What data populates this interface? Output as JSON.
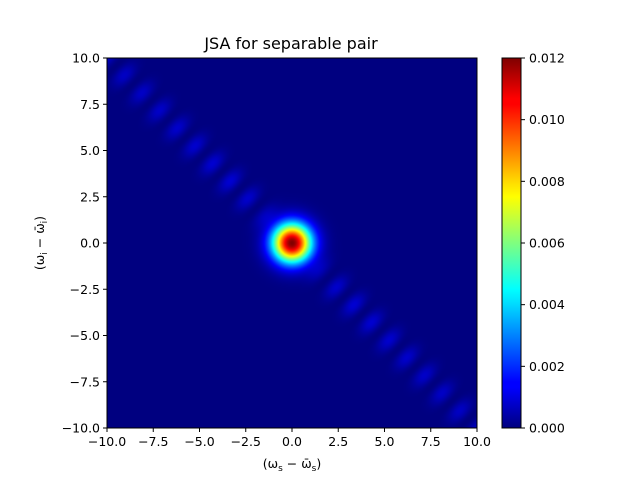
{
  "chart_data": {
    "type": "heatmap",
    "title": "JSA for separable pair",
    "xlabel": "(ω_s − ω̄_s)",
    "ylabel": "(ω_i − ω̄_i)",
    "xlim": [
      -10.0,
      10.0
    ],
    "ylim": [
      -10.0,
      10.0
    ],
    "x_ticks": [
      "−10.0",
      "−7.5",
      "−5.0",
      "−2.5",
      "0.0",
      "2.5",
      "5.0",
      "7.5",
      "10.0"
    ],
    "y_ticks": [
      "10.0",
      "7.5",
      "5.0",
      "2.5",
      "0.0",
      "−2.5",
      "−5.0",
      "−7.5",
      "−10.0"
    ],
    "x_tick_values": [
      -10,
      -7.5,
      -5,
      -2.5,
      0,
      2.5,
      5,
      7.5,
      10
    ],
    "y_tick_values": [
      10,
      7.5,
      5,
      2.5,
      0,
      -2.5,
      -5,
      -7.5,
      -10
    ],
    "colormap": "jet",
    "colorbar": {
      "range": [
        0.0,
        0.012
      ],
      "ticks": [
        "0.000",
        "0.002",
        "0.004",
        "0.006",
        "0.008",
        "0.010",
        "0.012"
      ],
      "tick_values": [
        0,
        0.002,
        0.004,
        0.006,
        0.008,
        0.01,
        0.012
      ]
    },
    "features": {
      "central_peak": {
        "x": 0.0,
        "y": 0.0,
        "value": 0.012
      },
      "side_lobes_along": "x + y = 0",
      "side_lobe_value_approx": 0.0012
    }
  }
}
